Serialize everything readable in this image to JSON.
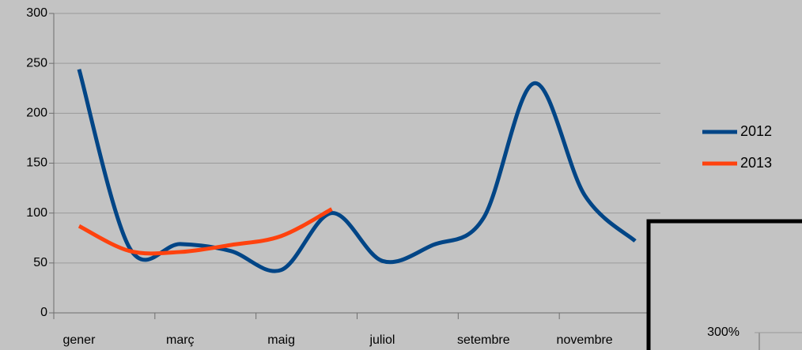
{
  "chart_data": {
    "type": "line",
    "categories": [
      "gener",
      null,
      "març",
      null,
      "maig",
      null,
      "juliol",
      null,
      "setembre",
      null,
      "novembre",
      null
    ],
    "series": [
      {
        "name": "2012",
        "color": "#004586",
        "values": [
          244,
          65,
          69,
          62,
          43,
          100,
          52,
          68,
          95,
          230,
          118,
          72
        ]
      },
      {
        "name": "2013",
        "color": "#ff420e",
        "values": [
          87,
          62,
          61,
          68,
          77,
          104,
          null,
          null,
          null,
          null,
          null,
          null
        ]
      }
    ],
    "ylim": [
      0,
      300
    ],
    "yticks": [
      0,
      50,
      100,
      150,
      200,
      250,
      300
    ],
    "grid": true,
    "smooth": true,
    "legend": "right"
  },
  "overlay": {
    "label": "300%"
  }
}
